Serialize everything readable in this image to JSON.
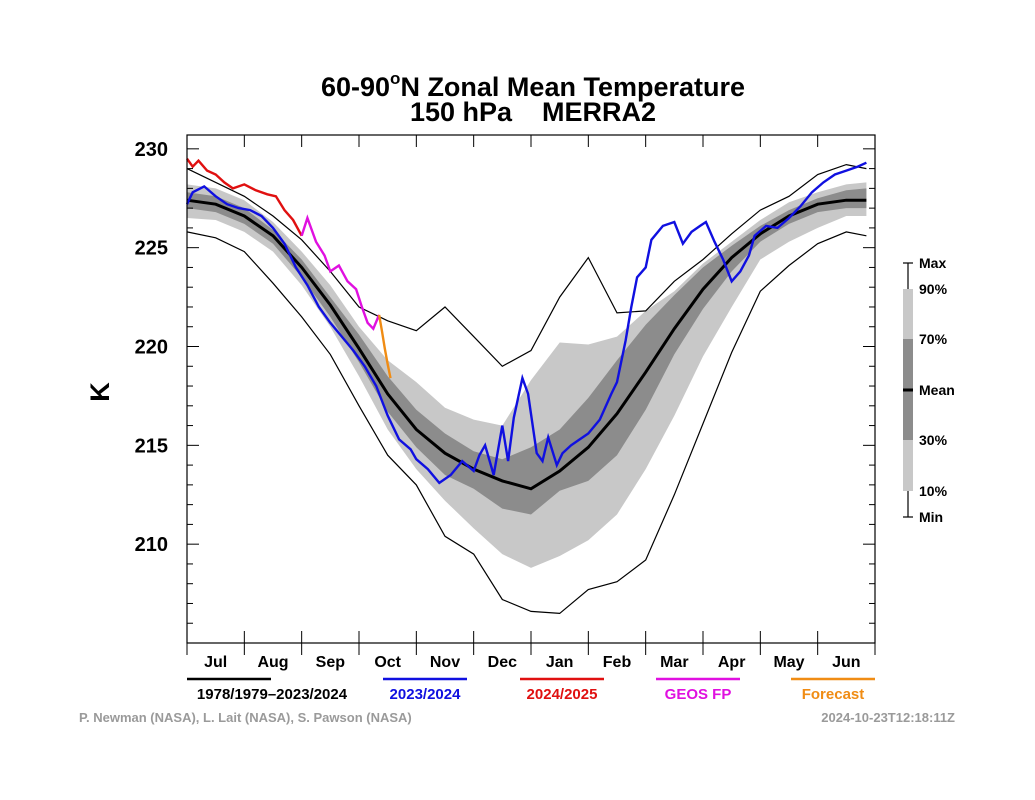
{
  "chart_data": {
    "type": "line",
    "title_line1_main": "60-90",
    "title_line1_sup": "o",
    "title_line1_rest": "N Zonal Mean Temperature",
    "title_line2": "150 hPa    MERRA2",
    "ylabel": "K",
    "ylim": [
      205,
      230.7
    ],
    "xlim": [
      0,
      12
    ],
    "yticks": [
      210,
      215,
      220,
      225,
      230
    ],
    "yticklabels": [
      "210",
      "215",
      "220",
      "225",
      "230"
    ],
    "months": [
      "Jul",
      "Aug",
      "Sep",
      "Oct",
      "Nov",
      "Dec",
      "Jan",
      "Feb",
      "Mar",
      "Apr",
      "May",
      "Jun"
    ],
    "x_unit": "months since Jul 1",
    "climatology": {
      "x": [
        0.0,
        0.5,
        1.0,
        1.5,
        2.0,
        2.5,
        3.0,
        3.5,
        4.0,
        4.5,
        5.0,
        5.5,
        6.0,
        6.5,
        7.0,
        7.5,
        8.0,
        8.5,
        9.0,
        9.5,
        10.0,
        10.5,
        11.0,
        11.5,
        11.85
      ],
      "max": [
        229.0,
        228.3,
        227.6,
        226.6,
        225.4,
        223.8,
        222.0,
        221.3,
        220.8,
        222.0,
        220.5,
        219.0,
        219.8,
        222.5,
        224.5,
        221.7,
        221.8,
        223.3,
        224.4,
        225.7,
        226.9,
        227.6,
        228.7,
        229.2,
        229.0
      ],
      "p90": [
        228.2,
        228.0,
        227.4,
        226.3,
        224.8,
        223.1,
        221.0,
        219.3,
        218.2,
        216.9,
        216.3,
        216.0,
        218.3,
        220.2,
        220.1,
        220.5,
        221.8,
        222.8,
        224.2,
        225.3,
        226.4,
        227.3,
        227.8,
        228.2,
        228.3
      ],
      "p70": [
        227.8,
        227.6,
        227.0,
        225.9,
        224.4,
        222.5,
        220.6,
        218.5,
        216.8,
        215.6,
        214.7,
        214.3,
        214.9,
        215.8,
        217.4,
        219.3,
        221.1,
        222.6,
        224.0,
        225.1,
        226.1,
        226.9,
        227.5,
        227.9,
        228.0
      ],
      "mean": [
        227.4,
        227.2,
        226.6,
        225.6,
        224.0,
        222.1,
        219.9,
        217.6,
        215.8,
        214.6,
        213.8,
        213.2,
        212.8,
        213.7,
        214.9,
        216.6,
        218.7,
        220.9,
        222.9,
        224.5,
        225.7,
        226.6,
        227.2,
        227.4,
        227.4
      ],
      "p30": [
        227.0,
        226.8,
        226.2,
        225.2,
        223.5,
        221.5,
        219.2,
        216.7,
        214.9,
        213.5,
        212.8,
        211.8,
        211.5,
        212.7,
        213.2,
        214.5,
        216.8,
        219.6,
        221.9,
        223.8,
        225.3,
        226.2,
        226.8,
        227.0,
        227.0
      ],
      "p10": [
        226.5,
        226.4,
        225.8,
        224.8,
        223.1,
        221.0,
        218.5,
        215.8,
        213.8,
        212.2,
        210.8,
        209.5,
        208.8,
        209.4,
        210.2,
        211.5,
        213.8,
        216.5,
        219.5,
        222.0,
        224.4,
        225.3,
        226.0,
        226.6,
        226.6
      ],
      "min": [
        225.8,
        225.5,
        224.8,
        223.2,
        221.5,
        219.6,
        217.0,
        214.5,
        213.0,
        210.4,
        209.5,
        207.2,
        206.6,
        206.5,
        207.7,
        208.1,
        209.2,
        212.5,
        216.1,
        219.7,
        222.8,
        224.1,
        225.2,
        225.8,
        225.6
      ]
    },
    "series_2023_2024": {
      "x": [
        0.0,
        0.1,
        0.3,
        0.5,
        0.7,
        0.9,
        1.1,
        1.3,
        1.5,
        1.7,
        1.9,
        2.1,
        2.3,
        2.5,
        2.7,
        2.9,
        3.1,
        3.3,
        3.5,
        3.7,
        3.9,
        4.0,
        4.2,
        4.4,
        4.6,
        4.8,
        5.0,
        5.1,
        5.2,
        5.35,
        5.5,
        5.6,
        5.7,
        5.85,
        5.95,
        6.1,
        6.2,
        6.3,
        6.45,
        6.55,
        6.7,
        6.85,
        7.0,
        7.2,
        7.4,
        7.5,
        7.65,
        7.75,
        7.85,
        8.0,
        8.1,
        8.3,
        8.5,
        8.65,
        8.8,
        8.95,
        9.05,
        9.2,
        9.35,
        9.5,
        9.65,
        9.8,
        9.9,
        10.1,
        10.3,
        10.5,
        10.7,
        10.9,
        11.1,
        11.3,
        11.5,
        11.7,
        11.85
      ],
      "y": [
        227.2,
        227.8,
        228.1,
        227.6,
        227.2,
        227.0,
        226.9,
        226.6,
        226.0,
        225.2,
        224.0,
        223.1,
        222.0,
        221.2,
        220.5,
        219.8,
        219.0,
        218.0,
        216.5,
        215.3,
        214.8,
        214.3,
        213.8,
        213.1,
        213.5,
        214.2,
        213.7,
        214.5,
        215.0,
        213.5,
        216.0,
        214.2,
        216.4,
        218.4,
        217.6,
        214.6,
        214.2,
        215.4,
        214.0,
        214.6,
        215.0,
        215.3,
        215.6,
        216.3,
        217.6,
        218.2,
        220.3,
        222.0,
        223.5,
        224.0,
        225.4,
        226.1,
        226.3,
        225.2,
        225.8,
        226.1,
        226.3,
        225.3,
        224.4,
        223.3,
        223.8,
        224.6,
        225.6,
        226.1,
        226.0,
        226.5,
        227.1,
        227.8,
        228.3,
        228.7,
        228.9,
        229.1,
        229.3
      ]
    },
    "series_2024_2025": {
      "x": [
        0.0,
        0.1,
        0.2,
        0.35,
        0.5,
        0.65,
        0.8,
        1.0,
        1.2,
        1.4,
        1.55,
        1.7,
        1.85,
        2.0
      ],
      "y": [
        229.5,
        229.1,
        229.4,
        228.9,
        228.7,
        228.3,
        228.0,
        228.2,
        227.9,
        227.7,
        227.6,
        226.9,
        226.4,
        225.6
      ]
    },
    "series_geos_fp": {
      "x": [
        2.0,
        2.1,
        2.25,
        2.4,
        2.5,
        2.65,
        2.8,
        2.95,
        3.05,
        3.15,
        3.25,
        3.35
      ],
      "y": [
        225.6,
        226.5,
        225.3,
        224.6,
        223.8,
        224.1,
        223.3,
        222.9,
        222.0,
        221.2,
        220.9,
        221.6
      ]
    },
    "series_forecast": {
      "x": [
        3.35,
        3.4,
        3.45,
        3.5,
        3.55
      ],
      "y": [
        221.6,
        220.8,
        219.9,
        219.1,
        218.4
      ]
    },
    "legend_right": {
      "labels": [
        "Max",
        "90%",
        "70%",
        "Mean",
        "30%",
        "10%",
        "Min"
      ]
    },
    "legend_bottom": [
      {
        "label": "1978/1979–2023/2024",
        "color": "#000000"
      },
      {
        "label": "2023/2024",
        "color": "#1010e0"
      },
      {
        "label": "2024/2025",
        "color": "#e01010"
      },
      {
        "label": "GEOS FP",
        "color": "#e010e0"
      },
      {
        "label": "Forecast",
        "color": "#f08c14"
      }
    ],
    "colors": {
      "band_outer": "#c8c8c8",
      "band_inner": "#8c8c8c",
      "mean": "#000000",
      "minmax": "#000000",
      "y2023": "#1010e0",
      "y2024": "#e01010",
      "geos": "#e010e0",
      "forecast": "#f08c14"
    }
  },
  "credits": "P. Newman (NASA), L. Lait (NASA), S. Pawson (NASA)",
  "timestamp": "2024-10-23T12:18:11Z"
}
